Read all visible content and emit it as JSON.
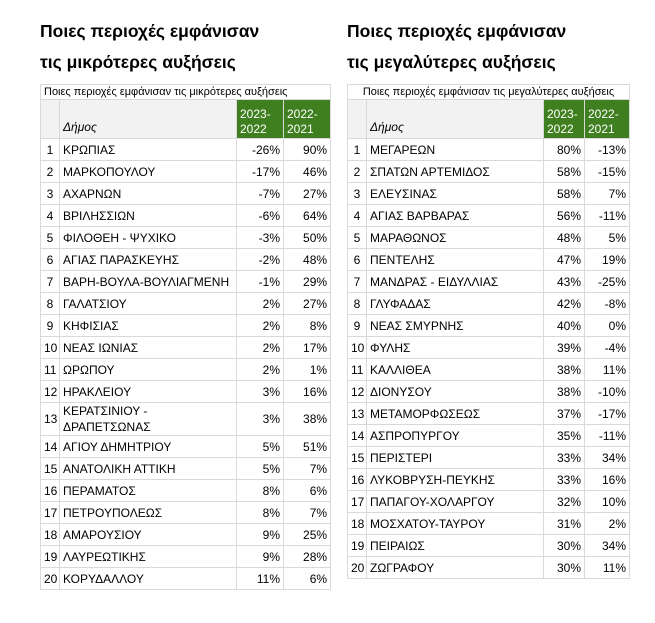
{
  "left": {
    "heading": [
      "Ποιες περιοχές εμφάνισαν",
      "τις μικρότερες αυξήσεις"
    ],
    "caption": "Ποιες περιοχές εμφάνισαν τις μικρότερες αυξήσεις",
    "header": {
      "dimos": "Δήμος",
      "col1": "2023-2022",
      "col2": "2022-2021"
    },
    "rows": [
      {
        "rank": "1",
        "name": "ΚΡΩΠΙΑΣ",
        "v1": "-26%",
        "v2": "90%"
      },
      {
        "rank": "2",
        "name": "ΜΑΡΚΟΠΟΥΛΟΥ",
        "v1": "-17%",
        "v2": "46%"
      },
      {
        "rank": "3",
        "name": "ΑΧΑΡΝΩΝ",
        "v1": "-7%",
        "v2": "27%"
      },
      {
        "rank": "4",
        "name": "ΒΡΙΛΗΣΣΙΩΝ",
        "v1": "-6%",
        "v2": "64%"
      },
      {
        "rank": "5",
        "name": "ΦΙΛΟΘΕΗ - ΨΥΧΙΚΟ",
        "v1": "-3%",
        "v2": "50%"
      },
      {
        "rank": "6",
        "name": "ΑΓΙΑΣ ΠΑΡΑΣΚΕΥΗΣ",
        "v1": "-2%",
        "v2": "48%"
      },
      {
        "rank": "7",
        "name": "ΒΑΡΗ-ΒΟΥΛΑ-ΒΟΥΛΙΑΓΜΕΝΗ",
        "v1": "-1%",
        "v2": "29%"
      },
      {
        "rank": "8",
        "name": "ΓΑΛΑΤΣΙΟΥ",
        "v1": "2%",
        "v2": "27%"
      },
      {
        "rank": "9",
        "name": "ΚΗΦΙΣΙΑΣ",
        "v1": "2%",
        "v2": "8%"
      },
      {
        "rank": "10",
        "name": "ΝΕΑΣ ΙΩΝΙΑΣ",
        "v1": "2%",
        "v2": "17%"
      },
      {
        "rank": "11",
        "name": "ΩΡΩΠΟΥ",
        "v1": "2%",
        "v2": "1%"
      },
      {
        "rank": "12",
        "name": "ΗΡΑΚΛΕΙΟΥ",
        "v1": "3%",
        "v2": "16%"
      },
      {
        "rank": "13",
        "name": "ΚΕΡΑΤΣΙΝΙΟΥ - ΔΡΑΠΕΤΣΩΝΑΣ",
        "v1": "3%",
        "v2": "38%"
      },
      {
        "rank": "14",
        "name": "ΑΓΙΟΥ ΔΗΜΗΤΡΙΟΥ",
        "v1": "5%",
        "v2": "51%"
      },
      {
        "rank": "15",
        "name": "ΑΝΑΤΟΛΙΚΗ ΑΤΤΙΚΗ",
        "v1": "5%",
        "v2": "7%"
      },
      {
        "rank": "16",
        "name": "ΠΕΡΑΜΑΤΟΣ",
        "v1": "8%",
        "v2": "6%"
      },
      {
        "rank": "17",
        "name": "ΠΕΤΡΟΥΠΟΛΕΩΣ",
        "v1": "8%",
        "v2": "7%"
      },
      {
        "rank": "18",
        "name": "ΑΜΑΡΟΥΣΙΟΥ",
        "v1": "9%",
        "v2": "25%"
      },
      {
        "rank": "19",
        "name": "ΛΑΥΡΕΩΤΙΚΗΣ",
        "v1": "9%",
        "v2": "28%"
      },
      {
        "rank": "20",
        "name": "ΚΟΡΥΔΑΛΛΟΥ",
        "v1": "11%",
        "v2": "6%"
      }
    ]
  },
  "right": {
    "heading": [
      "Ποιες περιοχές εμφάνισαν",
      "τις μεγαλύτερες αυξήσεις"
    ],
    "caption": "Ποιες περιοχές εμφάνισαν τις μεγαλύτερες αυξήσεις",
    "header": {
      "dimos": "Δήμος",
      "col1": "2023-2022",
      "col2": "2022-2021"
    },
    "rows": [
      {
        "rank": "1",
        "name": "ΜΕΓΑΡΕΩΝ",
        "v1": "80%",
        "v2": "-13%"
      },
      {
        "rank": "2",
        "name": "ΣΠΑΤΩΝ ΑΡΤΕΜΙΔΟΣ",
        "v1": "58%",
        "v2": "-15%"
      },
      {
        "rank": "3",
        "name": "ΕΛΕΥΣΙΝΑΣ",
        "v1": "58%",
        "v2": "7%"
      },
      {
        "rank": "4",
        "name": "ΑΓΙΑΣ ΒΑΡΒΑΡΑΣ",
        "v1": "56%",
        "v2": "-11%"
      },
      {
        "rank": "5",
        "name": "ΜΑΡΑΘΩΝΟΣ",
        "v1": "48%",
        "v2": "5%"
      },
      {
        "rank": "6",
        "name": "ΠΕΝΤΕΛΗΣ",
        "v1": "47%",
        "v2": "19%"
      },
      {
        "rank": "7",
        "name": "ΜΑΝΔΡΑΣ - ΕΙΔΥΛΛΙΑΣ",
        "v1": "43%",
        "v2": "-25%"
      },
      {
        "rank": "8",
        "name": "ΓΛΥΦΑΔΑΣ",
        "v1": "42%",
        "v2": "-8%"
      },
      {
        "rank": "9",
        "name": "ΝΕΑΣ ΣΜΥΡΝΗΣ",
        "v1": "40%",
        "v2": "0%"
      },
      {
        "rank": "10",
        "name": "ΦΥΛΗΣ",
        "v1": "39%",
        "v2": "-4%"
      },
      {
        "rank": "11",
        "name": "ΚΑΛΛΙΘΕΑ",
        "v1": "38%",
        "v2": "11%"
      },
      {
        "rank": "12",
        "name": "ΔΙΟΝΥΣΟΥ",
        "v1": "38%",
        "v2": "-10%"
      },
      {
        "rank": "13",
        "name": "ΜΕΤΑΜΟΡΦΩΣΕΩΣ",
        "v1": "37%",
        "v2": "-17%"
      },
      {
        "rank": "14",
        "name": "ΑΣΠΡΟΠΥΡΓΟΥ",
        "v1": "35%",
        "v2": "-11%"
      },
      {
        "rank": "15",
        "name": "ΠΕΡΙΣΤΕΡΙ",
        "v1": "33%",
        "v2": "34%"
      },
      {
        "rank": "16",
        "name": "ΛΥΚΟΒΡΥΣΗ-ΠΕΥΚΗΣ",
        "v1": "33%",
        "v2": "16%"
      },
      {
        "rank": "17",
        "name": "ΠΑΠΑΓΟΥ-ΧΟΛΑΡΓΟΥ",
        "v1": "32%",
        "v2": "10%"
      },
      {
        "rank": "18",
        "name": "ΜΟΣΧΑΤΟΥ-ΤΑΥΡΟΥ",
        "v1": "31%",
        "v2": "2%"
      },
      {
        "rank": "19",
        "name": "ΠΕΙΡΑΙΩΣ",
        "v1": "30%",
        "v2": "34%"
      },
      {
        "rank": "20",
        "name": "ΖΩΓΡΑΦΟΥ",
        "v1": "30%",
        "v2": "11%"
      }
    ]
  }
}
